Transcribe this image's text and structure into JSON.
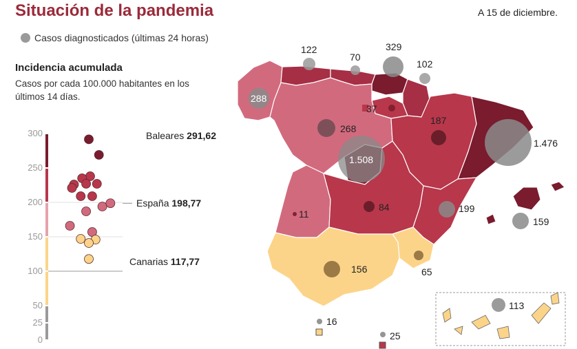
{
  "title": "Situación de la pandemia",
  "date": "A 15 de diciembre.",
  "legend": {
    "circle_label": "Casos diagnosticados (últimas 24 horas)"
  },
  "incidence": {
    "title": "Incidencia acumulada",
    "description": "Casos por cada 100.000 habitantes en los últimos 14 días."
  },
  "colors": {
    "dark": "#7a1b2e",
    "mid_dark": "#b8374b",
    "mid": "#d26a7e",
    "light_pink": "#e5a2ad",
    "yellow": "#fcd489",
    "grey": "#9a9a9a"
  },
  "chart_data": {
    "type": "scatter",
    "yticks": [
      0,
      25,
      50,
      100,
      150,
      200,
      250,
      300
    ],
    "ylim": [
      0,
      300
    ],
    "highlights": [
      {
        "name": "Baleares",
        "value": "291,62"
      },
      {
        "name": "España",
        "value": "198,77"
      },
      {
        "name": "Canarias",
        "value": "117,77"
      }
    ],
    "points": [
      {
        "x": 0.5,
        "y": 291.62
      },
      {
        "x": 0.65,
        "y": 269
      },
      {
        "x": 0.52,
        "y": 238
      },
      {
        "x": 0.4,
        "y": 235
      },
      {
        "x": 0.28,
        "y": 226
      },
      {
        "x": 0.46,
        "y": 227
      },
      {
        "x": 0.62,
        "y": 227
      },
      {
        "x": 0.25,
        "y": 221
      },
      {
        "x": 0.38,
        "y": 209
      },
      {
        "x": 0.55,
        "y": 209
      },
      {
        "x": 0.7,
        "y": 194
      },
      {
        "x": 0.46,
        "y": 187
      },
      {
        "x": 0.22,
        "y": 166
      },
      {
        "x": 0.55,
        "y": 157
      },
      {
        "x": 0.38,
        "y": 147
      },
      {
        "x": 0.6,
        "y": 146
      },
      {
        "x": 0.5,
        "y": 141
      },
      {
        "x": 0.5,
        "y": 117.77
      },
      {
        "x": 0.82,
        "y": 198.77
      }
    ]
  },
  "map_cases": [
    {
      "label": "122",
      "region": "Asturias"
    },
    {
      "label": "70",
      "region": "Cantabria"
    },
    {
      "label": "329",
      "region": "País Vasco"
    },
    {
      "label": "102",
      "region": "Navarra"
    },
    {
      "label": "288",
      "region": "Galicia"
    },
    {
      "label": "37",
      "region": "La Rioja"
    },
    {
      "label": "268",
      "region": "Castilla y León"
    },
    {
      "label": "187",
      "region": "Aragón"
    },
    {
      "label": "1.508",
      "region": "Madrid"
    },
    {
      "label": "1.476",
      "region": "Cataluña"
    },
    {
      "label": "11",
      "region": "Extremadura"
    },
    {
      "label": "84",
      "region": "Castilla-La Mancha"
    },
    {
      "label": "199",
      "region": "Comunidad Valenciana"
    },
    {
      "label": "159",
      "region": "Baleares"
    },
    {
      "label": "156",
      "region": "Andalucía"
    },
    {
      "label": "65",
      "region": "Murcia"
    },
    {
      "label": "113",
      "region": "Canarias"
    },
    {
      "label": "16",
      "region": "Ceuta"
    },
    {
      "label": "25",
      "region": "Melilla"
    }
  ]
}
